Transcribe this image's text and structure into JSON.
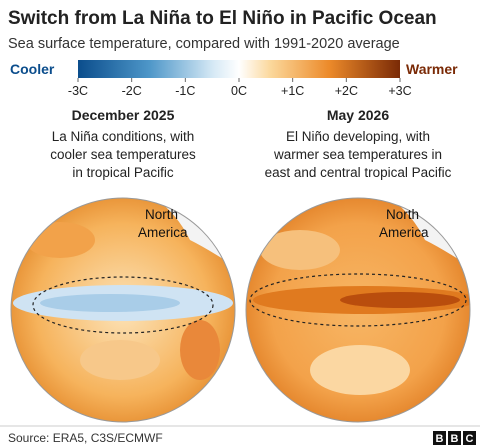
{
  "header": {
    "title": "Switch from La Niña to El Niño in Pacific Ocean",
    "subtitle": "Sea surface temperature, compared with 1991-2020 average"
  },
  "legend": {
    "cool_label": "Cooler",
    "warm_label": "Warmer",
    "lim": [
      -3,
      3
    ],
    "ticks": [
      {
        "value": -3,
        "label": "-3C"
      },
      {
        "value": -2,
        "label": "-2C"
      },
      {
        "value": -1,
        "label": "-1C"
      },
      {
        "value": 0,
        "label": "0C"
      },
      {
        "value": 1,
        "label": "+1C"
      },
      {
        "value": 2,
        "label": "+2C"
      },
      {
        "value": 3,
        "label": "+3C"
      }
    ]
  },
  "panels": [
    {
      "title": "December 2025",
      "description": [
        "La Niña conditions, with",
        "cooler sea temperatures",
        "in tropical Pacific"
      ],
      "region": [
        "North",
        "America"
      ]
    },
    {
      "title": "May 2026",
      "description": [
        "El Niño developing, with",
        "warmer sea temperatures in",
        "east and central tropical Pacific"
      ],
      "region": [
        "North",
        "America"
      ]
    }
  ],
  "footer": {
    "source": "Source: ERA5, C3S/ECMWF",
    "logo": [
      "B",
      "B",
      "C"
    ]
  }
}
